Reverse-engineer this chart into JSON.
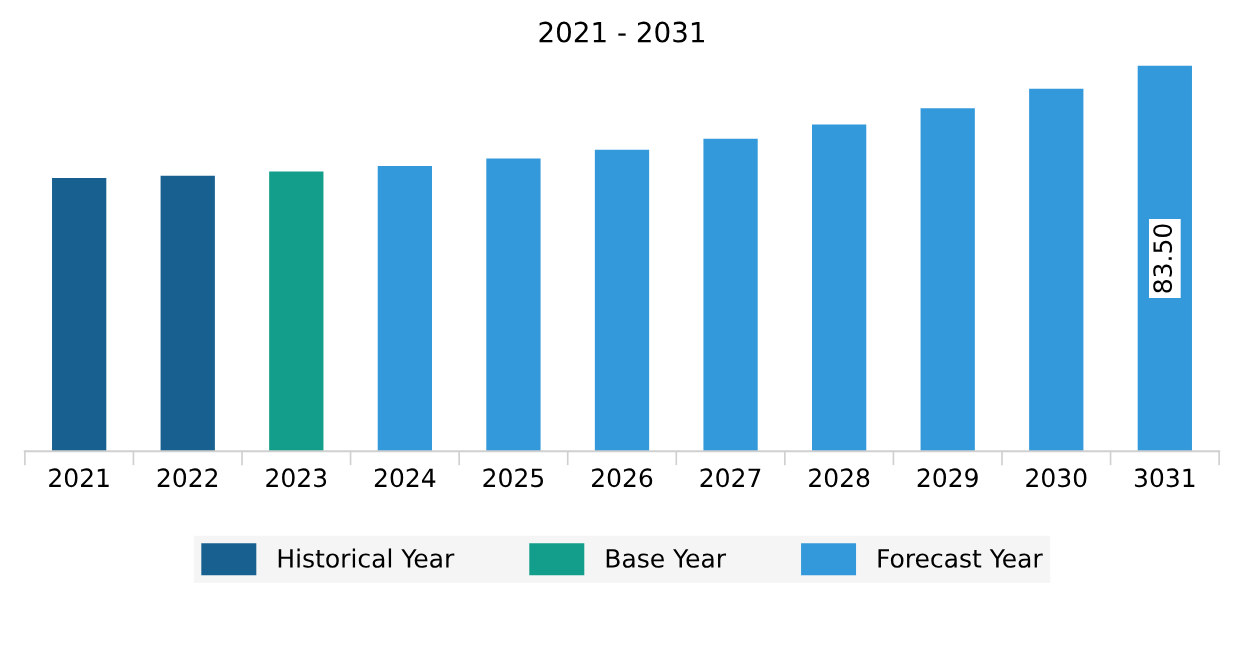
{
  "chart_data": {
    "type": "bar",
    "title": "2021 - 2031",
    "categories": [
      "2021",
      "2022",
      "2023",
      "2024",
      "2025",
      "2026",
      "2027",
      "2028",
      "2029",
      "2030",
      "3031"
    ],
    "series": [
      {
        "name": "Historical Year",
        "color": "#17608f",
        "values": [
          59.2,
          59.7,
          null,
          null,
          null,
          null,
          null,
          null,
          null,
          null,
          null
        ]
      },
      {
        "name": "Base Year",
        "color": "#129e8a",
        "values": [
          null,
          null,
          60.6,
          null,
          null,
          null,
          null,
          null,
          null,
          null,
          null
        ]
      },
      {
        "name": "Forecast Year",
        "color": "#3399da",
        "values": [
          null,
          null,
          null,
          61.8,
          63.4,
          65.3,
          67.7,
          70.8,
          74.3,
          78.5,
          83.5
        ],
        "value_labels": [
          null,
          null,
          null,
          null,
          null,
          null,
          null,
          null,
          null,
          null,
          "83.50"
        ]
      }
    ],
    "ylim": [
      0,
      85
    ],
    "legend": "bottom"
  }
}
